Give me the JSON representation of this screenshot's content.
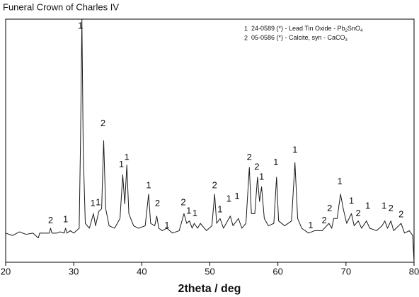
{
  "chart_data": {
    "type": "line",
    "title": "Funeral Crown of Charles IV",
    "x_label": "2theta / deg",
    "color": "#1a1a1a",
    "x": [
      20,
      21,
      22,
      23,
      24,
      24.8,
      25,
      26,
      26.4,
      26.6,
      26.8,
      27.5,
      28,
      28.6,
      28.8,
      29,
      29.5,
      30,
      30.8,
      31.0,
      31.2,
      31.4,
      31.7,
      32.3,
      32.9,
      33.2,
      33.7,
      34.1,
      34.4,
      34.7,
      35.2,
      36,
      36.8,
      37.2,
      37.5,
      37.8,
      38.1,
      38.8,
      39.5,
      40.5,
      41.0,
      41.3,
      41.9,
      42.2,
      42.5,
      43,
      43.7,
      44.5,
      45.5,
      46.2,
      46.6,
      47.0,
      47.4,
      47.7,
      48.2,
      48.6,
      49.5,
      50.3,
      50.7,
      51.0,
      51.5,
      52,
      53.0,
      53.4,
      54.2,
      54.7,
      55.3,
      55.8,
      56.1,
      56.6,
      57.0,
      57.3,
      57.6,
      58.0,
      58.6,
      59.4,
      59.8,
      60.1,
      61,
      62,
      62.5,
      62.9,
      63.5,
      64.5,
      65.4,
      66.5,
      67.5,
      67.9,
      68.2,
      68.7,
      69.2,
      69.6,
      70.1,
      70.8,
      71.2,
      71.8,
      72.3,
      73,
      73.5,
      74.5,
      75.3,
      75.7,
      76.1,
      76.6,
      77,
      78.1,
      78.6,
      79.3,
      79.8,
      80
    ],
    "values": [
      12,
      11,
      12.5,
      11.5,
      12,
      10,
      12,
      12,
      12,
      14,
      12,
      12,
      12.5,
      12,
      14,
      12,
      13,
      12,
      14,
      50,
      100,
      45,
      16,
      14,
      20,
      15,
      21,
      22,
      50,
      22,
      15,
      14,
      18,
      36,
      24,
      40,
      20,
      15,
      14,
      15,
      28,
      16,
      15,
      19,
      14,
      13,
      14,
      12,
      13,
      20,
      16,
      17,
      14,
      16,
      14,
      16,
      13,
      15,
      28,
      16,
      18,
      14,
      19,
      15,
      18,
      14,
      16,
      39,
      20,
      20,
      35,
      25,
      31,
      18,
      15,
      16,
      35,
      17,
      15,
      17,
      41,
      18,
      14,
      12,
      13,
      13,
      16,
      14,
      18,
      18,
      28,
      22,
      16,
      20,
      15,
      17,
      14,
      17,
      14,
      13,
      15,
      17,
      14,
      17,
      13,
      16,
      12,
      13,
      11,
      0
    ],
    "xlim": [
      20,
      80
    ],
    "xticks": [
      20,
      30,
      40,
      50,
      60,
      70,
      80
    ],
    "ylim": [
      0,
      100
    ],
    "annotations": [
      {
        "text": "1",
        "x": 31.0,
        "y": 97
      },
      {
        "text": "2",
        "x": 26.6,
        "y": 17
      },
      {
        "text": "1",
        "x": 28.8,
        "y": 17.5
      },
      {
        "text": "1",
        "x": 32.8,
        "y": 24
      },
      {
        "text": "1",
        "x": 33.6,
        "y": 24.5
      },
      {
        "text": "2",
        "x": 34.3,
        "y": 57
      },
      {
        "text": "1",
        "x": 37.0,
        "y": 40
      },
      {
        "text": "1",
        "x": 37.8,
        "y": 43
      },
      {
        "text": "1",
        "x": 41.0,
        "y": 31.5
      },
      {
        "text": "2",
        "x": 42.3,
        "y": 24
      },
      {
        "text": "1",
        "x": 43.7,
        "y": 15
      },
      {
        "text": "2",
        "x": 46.1,
        "y": 24.5
      },
      {
        "text": "1",
        "x": 46.9,
        "y": 21
      },
      {
        "text": "1",
        "x": 47.8,
        "y": 20
      },
      {
        "text": "2",
        "x": 50.7,
        "y": 31.5
      },
      {
        "text": "1",
        "x": 51.5,
        "y": 21.5
      },
      {
        "text": "1",
        "x": 52.8,
        "y": 26
      },
      {
        "text": "1",
        "x": 54.0,
        "y": 27
      },
      {
        "text": "2",
        "x": 55.8,
        "y": 43
      },
      {
        "text": "2",
        "x": 56.9,
        "y": 39
      },
      {
        "text": "1",
        "x": 57.6,
        "y": 35
      },
      {
        "text": "1",
        "x": 59.7,
        "y": 41
      },
      {
        "text": "1",
        "x": 62.5,
        "y": 46
      },
      {
        "text": "1",
        "x": 64.8,
        "y": 15
      },
      {
        "text": "2",
        "x": 66.8,
        "y": 17
      },
      {
        "text": "2",
        "x": 67.6,
        "y": 22
      },
      {
        "text": "1",
        "x": 69.1,
        "y": 33
      },
      {
        "text": "1",
        "x": 70.8,
        "y": 25
      },
      {
        "text": "2",
        "x": 71.8,
        "y": 20
      },
      {
        "text": "1",
        "x": 73.2,
        "y": 23
      },
      {
        "text": "1",
        "x": 75.6,
        "y": 23
      },
      {
        "text": "2",
        "x": 76.6,
        "y": 22
      },
      {
        "text": "2",
        "x": 78.1,
        "y": 19.5
      }
    ],
    "legend": [
      {
        "number": "1",
        "parts": [
          {
            "text": "24-0589 (*) - Lead Tin Oxide - Pb"
          },
          {
            "text": "2",
            "sub": true
          },
          {
            "text": "SnO"
          },
          {
            "text": "4",
            "sub": true
          }
        ]
      },
      {
        "number": "2",
        "parts": [
          {
            "text": "05-0586 (*) - Calcite, syn - CaCO"
          },
          {
            "text": "3",
            "sub": true
          }
        ]
      }
    ]
  }
}
